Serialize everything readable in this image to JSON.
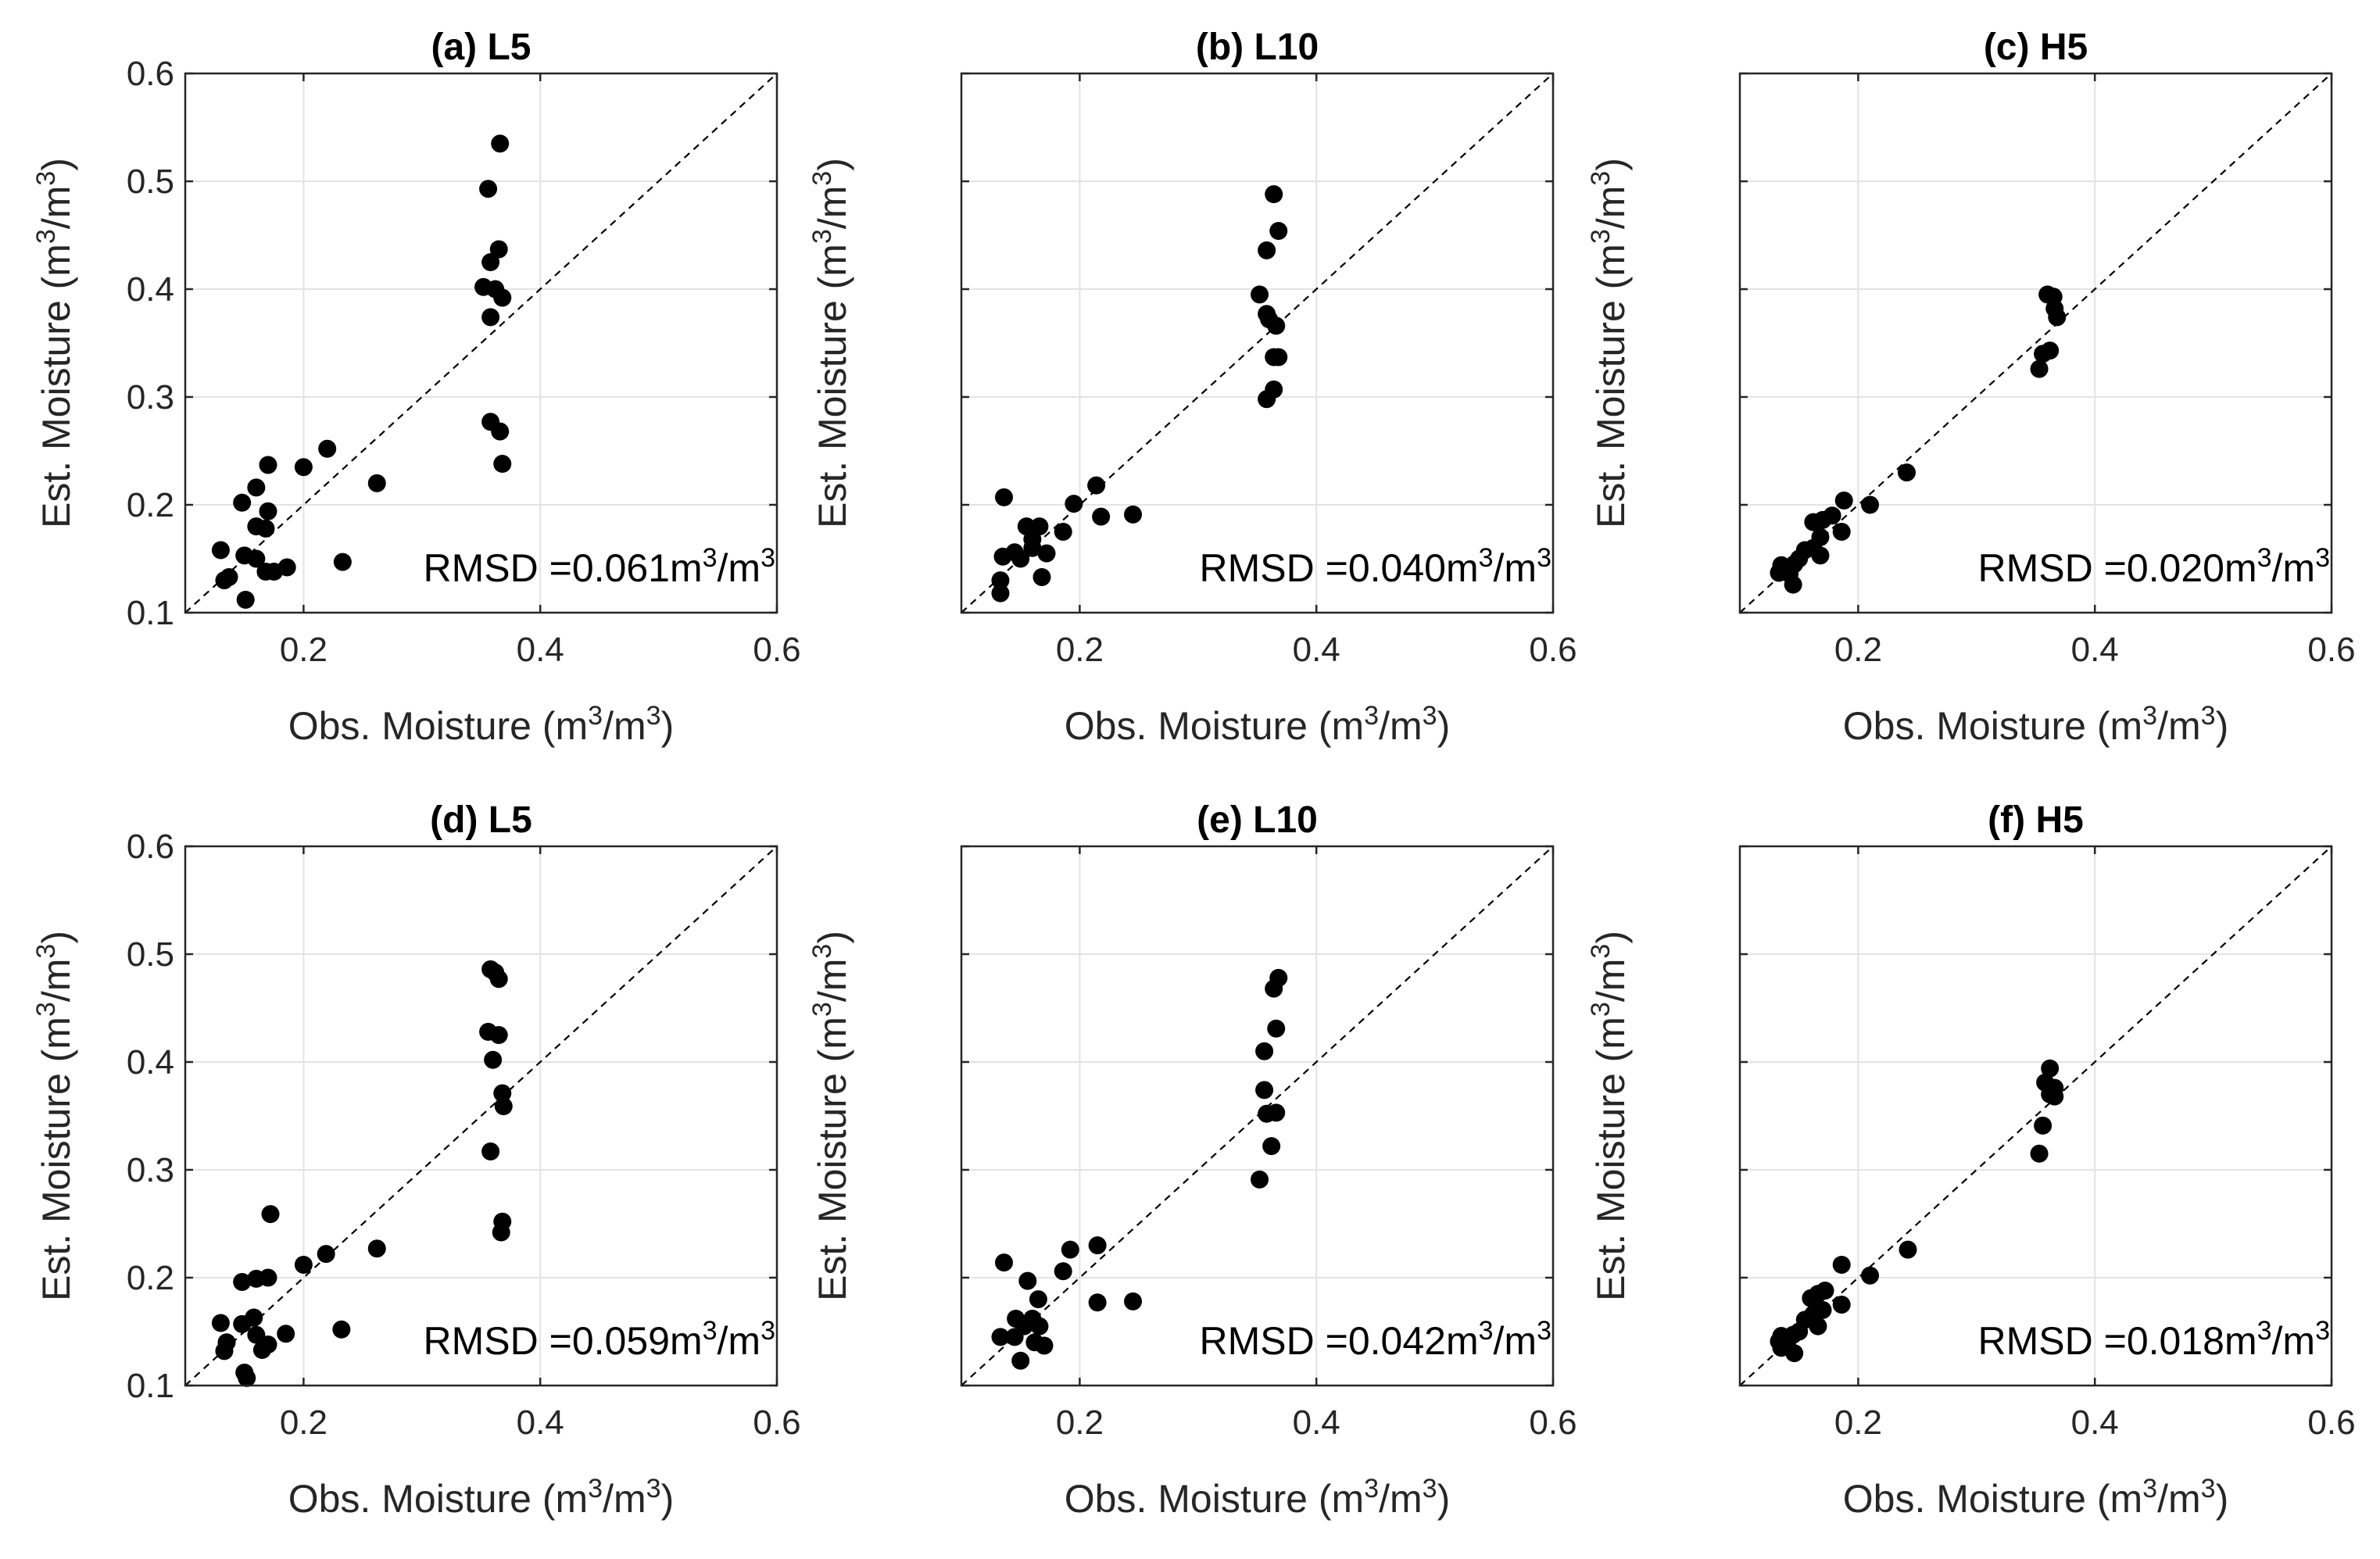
{
  "chart_data": [
    {
      "type": "scatter",
      "title": "(a) L5",
      "xlabel": "Obs. Moisture (m3/m3)",
      "ylabel": "Est. Moisture (m3/m3)",
      "xlim": [
        0.1,
        0.6
      ],
      "ylim": [
        0.1,
        0.6
      ],
      "xticks": [
        "0.2",
        "0.4",
        "0.6"
      ],
      "yticks": [
        "0.1",
        "0.2",
        "0.3",
        "0.4",
        "0.5",
        "0.6"
      ],
      "show_yticklabels": true,
      "grid": true,
      "reference_line": "1:1 dashed",
      "rmsd": {
        "prefix": "RMSD =",
        "value": "0.061",
        "unit": "m3/m3"
      },
      "series": [
        {
          "name": "samples",
          "points": [
            [
              0.366,
              0.535
            ],
            [
              0.356,
              0.493
            ],
            [
              0.365,
              0.437
            ],
            [
              0.358,
              0.425
            ],
            [
              0.352,
              0.402
            ],
            [
              0.362,
              0.4
            ],
            [
              0.368,
              0.392
            ],
            [
              0.358,
              0.374
            ],
            [
              0.358,
              0.277
            ],
            [
              0.366,
              0.268
            ],
            [
              0.368,
              0.238
            ],
            [
              0.262,
              0.22
            ],
            [
              0.22,
              0.252
            ],
            [
              0.2,
              0.235
            ],
            [
              0.17,
              0.237
            ],
            [
              0.16,
              0.216
            ],
            [
              0.148,
              0.202
            ],
            [
              0.17,
              0.194
            ],
            [
              0.16,
              0.18
            ],
            [
              0.168,
              0.178
            ],
            [
              0.13,
              0.158
            ],
            [
              0.15,
              0.153
            ],
            [
              0.16,
              0.15
            ],
            [
              0.168,
              0.138
            ],
            [
              0.175,
              0.138
            ],
            [
              0.186,
              0.142
            ],
            [
              0.233,
              0.147
            ],
            [
              0.133,
              0.13
            ],
            [
              0.137,
              0.133
            ],
            [
              0.151,
              0.112
            ]
          ]
        }
      ]
    },
    {
      "type": "scatter",
      "title": "(b) L10",
      "xlabel": "Obs. Moisture (m3/m3)",
      "ylabel": "Est. Moisture (m3/m3)",
      "xlim": [
        0.1,
        0.6
      ],
      "ylim": [
        0.1,
        0.6
      ],
      "xticks": [
        "0.2",
        "0.4",
        "0.6"
      ],
      "yticks": [
        "0.1",
        "0.2",
        "0.3",
        "0.4",
        "0.5",
        "0.6"
      ],
      "show_yticklabels": false,
      "grid": true,
      "reference_line": "1:1 dashed",
      "rmsd": {
        "prefix": "RMSD =",
        "value": "0.040",
        "unit": "m3/m3"
      },
      "series": [
        {
          "name": "samples",
          "points": [
            [
              0.364,
              0.488
            ],
            [
              0.368,
              0.454
            ],
            [
              0.358,
              0.436
            ],
            [
              0.352,
              0.395
            ],
            [
              0.358,
              0.377
            ],
            [
              0.36,
              0.372
            ],
            [
              0.366,
              0.366
            ],
            [
              0.364,
              0.337
            ],
            [
              0.368,
              0.337
            ],
            [
              0.364,
              0.307
            ],
            [
              0.358,
              0.298
            ],
            [
              0.214,
              0.218
            ],
            [
              0.195,
              0.201
            ],
            [
              0.245,
              0.191
            ],
            [
              0.218,
              0.189
            ],
            [
              0.186,
              0.175
            ],
            [
              0.136,
              0.207
            ],
            [
              0.155,
              0.18
            ],
            [
              0.166,
              0.18
            ],
            [
              0.16,
              0.168
            ],
            [
              0.16,
              0.16
            ],
            [
              0.172,
              0.155
            ],
            [
              0.145,
              0.156
            ],
            [
              0.135,
              0.152
            ],
            [
              0.15,
              0.15
            ],
            [
              0.168,
              0.133
            ],
            [
              0.133,
              0.13
            ],
            [
              0.133,
              0.118
            ]
          ]
        }
      ]
    },
    {
      "type": "scatter",
      "title": "(c) H5",
      "xlabel": "Obs. Moisture (m3/m3)",
      "ylabel": "Est. Moisture (m3/m3)",
      "xlim": [
        0.1,
        0.6
      ],
      "ylim": [
        0.1,
        0.6
      ],
      "xticks": [
        "0.2",
        "0.4",
        "0.6"
      ],
      "yticks": [
        "0.1",
        "0.2",
        "0.3",
        "0.4",
        "0.5",
        "0.6"
      ],
      "show_yticklabels": false,
      "grid": true,
      "reference_line": "1:1 dashed",
      "rmsd": {
        "prefix": "RMSD =",
        "value": "0.020",
        "unit": "m3/m3"
      },
      "series": [
        {
          "name": "samples",
          "points": [
            [
              0.36,
              0.395
            ],
            [
              0.365,
              0.393
            ],
            [
              0.366,
              0.382
            ],
            [
              0.368,
              0.374
            ],
            [
              0.362,
              0.343
            ],
            [
              0.356,
              0.34
            ],
            [
              0.353,
              0.326
            ],
            [
              0.241,
              0.23
            ],
            [
              0.21,
              0.2
            ],
            [
              0.188,
              0.204
            ],
            [
              0.178,
              0.19
            ],
            [
              0.17,
              0.186
            ],
            [
              0.162,
              0.184
            ],
            [
              0.186,
              0.175
            ],
            [
              0.168,
              0.17
            ],
            [
              0.162,
              0.16
            ],
            [
              0.155,
              0.158
            ],
            [
              0.168,
              0.153
            ],
            [
              0.15,
              0.15
            ],
            [
              0.146,
              0.145
            ],
            [
              0.135,
              0.144
            ],
            [
              0.138,
              0.139
            ],
            [
              0.142,
              0.136
            ],
            [
              0.133,
              0.137
            ],
            [
              0.145,
              0.126
            ]
          ]
        }
      ]
    },
    {
      "type": "scatter",
      "title": "(d) L5",
      "xlabel": "Obs. Moisture (m3/m3)",
      "ylabel": "Est. Moisture (m3/m3)",
      "xlim": [
        0.1,
        0.6
      ],
      "ylim": [
        0.1,
        0.6
      ],
      "xticks": [
        "0.2",
        "0.4",
        "0.6"
      ],
      "yticks": [
        "0.1",
        "0.2",
        "0.3",
        "0.4",
        "0.5",
        "0.6"
      ],
      "show_yticklabels": true,
      "grid": true,
      "reference_line": "1:1 dashed",
      "rmsd": {
        "prefix": "RMSD =",
        "value": "0.059",
        "unit": "m3/m3"
      },
      "series": [
        {
          "name": "samples",
          "points": [
            [
              0.358,
              0.486
            ],
            [
              0.365,
              0.477
            ],
            [
              0.362,
              0.483
            ],
            [
              0.356,
              0.428
            ],
            [
              0.365,
              0.425
            ],
            [
              0.36,
              0.402
            ],
            [
              0.368,
              0.371
            ],
            [
              0.369,
              0.359
            ],
            [
              0.358,
              0.317
            ],
            [
              0.368,
              0.252
            ],
            [
              0.367,
              0.242
            ],
            [
              0.172,
              0.259
            ],
            [
              0.262,
              0.227
            ],
            [
              0.219,
              0.222
            ],
            [
              0.2,
              0.212
            ],
            [
              0.17,
              0.2
            ],
            [
              0.16,
              0.199
            ],
            [
              0.148,
              0.196
            ],
            [
              0.158,
              0.163
            ],
            [
              0.13,
              0.158
            ],
            [
              0.148,
              0.157
            ],
            [
              0.16,
              0.147
            ],
            [
              0.185,
              0.148
            ],
            [
              0.232,
              0.152
            ],
            [
              0.17,
              0.138
            ],
            [
              0.165,
              0.133
            ],
            [
              0.135,
              0.14
            ],
            [
              0.133,
              0.132
            ],
            [
              0.15,
              0.112
            ],
            [
              0.152,
              0.107
            ]
          ]
        }
      ]
    },
    {
      "type": "scatter",
      "title": "(e) L10",
      "xlabel": "Obs. Moisture (m3/m3)",
      "ylabel": "Est. Moisture (m3/m3)",
      "xlim": [
        0.1,
        0.6
      ],
      "ylim": [
        0.1,
        0.6
      ],
      "xticks": [
        "0.2",
        "0.4",
        "0.6"
      ],
      "yticks": [
        "0.1",
        "0.2",
        "0.3",
        "0.4",
        "0.5",
        "0.6"
      ],
      "show_yticklabels": false,
      "grid": true,
      "reference_line": "1:1 dashed",
      "rmsd": {
        "prefix": "RMSD =",
        "value": "0.042",
        "unit": "m3/m3"
      },
      "series": [
        {
          "name": "samples",
          "points": [
            [
              0.368,
              0.478
            ],
            [
              0.364,
              0.468
            ],
            [
              0.366,
              0.431
            ],
            [
              0.356,
              0.41
            ],
            [
              0.356,
              0.374
            ],
            [
              0.358,
              0.352
            ],
            [
              0.366,
              0.353
            ],
            [
              0.362,
              0.322
            ],
            [
              0.352,
              0.291
            ],
            [
              0.215,
              0.23
            ],
            [
              0.192,
              0.226
            ],
            [
              0.186,
              0.206
            ],
            [
              0.136,
              0.214
            ],
            [
              0.156,
              0.197
            ],
            [
              0.165,
              0.18
            ],
            [
              0.245,
              0.178
            ],
            [
              0.215,
              0.177
            ],
            [
              0.146,
              0.162
            ],
            [
              0.16,
              0.162
            ],
            [
              0.153,
              0.155
            ],
            [
              0.166,
              0.155
            ],
            [
              0.133,
              0.145
            ],
            [
              0.145,
              0.145
            ],
            [
              0.162,
              0.14
            ],
            [
              0.17,
              0.137
            ],
            [
              0.15,
              0.123
            ]
          ]
        }
      ]
    },
    {
      "type": "scatter",
      "title": "(f) H5",
      "xlabel": "Obs. Moisture (m3/m3)",
      "ylabel": "Est. Moisture (m3/m3)",
      "xlim": [
        0.1,
        0.6
      ],
      "ylim": [
        0.1,
        0.6
      ],
      "xticks": [
        "0.2",
        "0.4",
        "0.6"
      ],
      "yticks": [
        "0.1",
        "0.2",
        "0.3",
        "0.4",
        "0.5",
        "0.6"
      ],
      "show_yticklabels": false,
      "grid": true,
      "reference_line": "1:1 dashed",
      "rmsd": {
        "prefix": "RMSD =",
        "value": "0.018",
        "unit": "m3/m3"
      },
      "series": [
        {
          "name": "samples",
          "points": [
            [
              0.362,
              0.394
            ],
            [
              0.358,
              0.381
            ],
            [
              0.366,
              0.376
            ],
            [
              0.362,
              0.37
            ],
            [
              0.366,
              0.368
            ],
            [
              0.356,
              0.341
            ],
            [
              0.353,
              0.315
            ],
            [
              0.242,
              0.226
            ],
            [
              0.21,
              0.202
            ],
            [
              0.186,
              0.212
            ],
            [
              0.172,
              0.188
            ],
            [
              0.166,
              0.185
            ],
            [
              0.16,
              0.181
            ],
            [
              0.186,
              0.175
            ],
            [
              0.17,
              0.17
            ],
            [
              0.162,
              0.166
            ],
            [
              0.155,
              0.161
            ],
            [
              0.166,
              0.155
            ],
            [
              0.15,
              0.15
            ],
            [
              0.145,
              0.147
            ],
            [
              0.135,
              0.146
            ],
            [
              0.133,
              0.141
            ],
            [
              0.14,
              0.137
            ],
            [
              0.135,
              0.135
            ],
            [
              0.146,
              0.13
            ]
          ]
        }
      ]
    }
  ]
}
